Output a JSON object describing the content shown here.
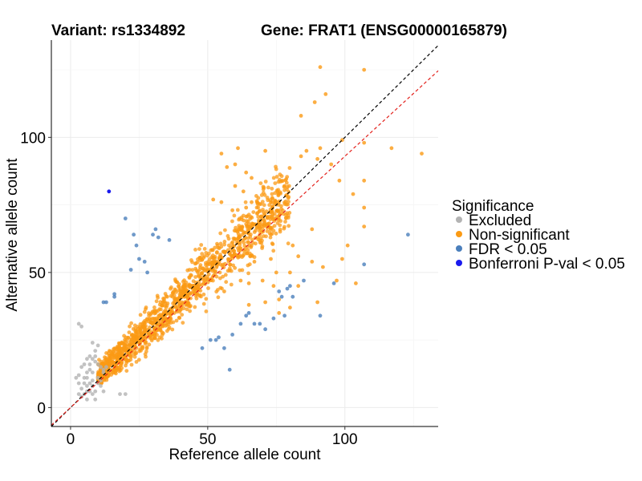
{
  "chart_data": {
    "type": "scatter",
    "title_left": "Variant: rs1334892",
    "title_right": "Gene: FRAT1 (ENSG00000165879)",
    "xlabel": "Reference allele count",
    "ylabel": "Alternative allele count",
    "xlim": [
      -7,
      134
    ],
    "ylim": [
      -7,
      136
    ],
    "xticks": [
      0,
      50,
      100
    ],
    "yticks": [
      0,
      50,
      100
    ],
    "grid": true,
    "reference_lines": [
      {
        "name": "identity",
        "slope": 1.0,
        "intercept": 0,
        "color": "#000000",
        "dash": true
      },
      {
        "name": "fit",
        "slope": 0.93,
        "intercept": 0,
        "color": "#e3201b",
        "dash": true
      }
    ],
    "legend": {
      "title": "Significance",
      "position": "right",
      "entries": [
        {
          "label": "Excluded",
          "color": "#b3b3b3"
        },
        {
          "label": "Non-significant",
          "color": "#fb9a14"
        },
        {
          "label": "FDR < 0.05",
          "color": "#4b7fbc"
        },
        {
          "label": "Bonferroni P-val < 0.05",
          "color": "#1a1aee"
        }
      ]
    },
    "series": [
      {
        "name": "Excluded",
        "color": "#b3b3b3",
        "points": [
          [
            3,
            31
          ],
          [
            4,
            30
          ],
          [
            3,
            12
          ],
          [
            2,
            11
          ],
          [
            3,
            9
          ],
          [
            4,
            7
          ],
          [
            5,
            5
          ],
          [
            6,
            3
          ],
          [
            3,
            5
          ],
          [
            4,
            4
          ],
          [
            5,
            11
          ],
          [
            6,
            13
          ],
          [
            5,
            16
          ],
          [
            6,
            18
          ],
          [
            7,
            14
          ],
          [
            7,
            16
          ],
          [
            8,
            13
          ],
          [
            8,
            18
          ],
          [
            9,
            17
          ],
          [
            9,
            19
          ],
          [
            10,
            11
          ],
          [
            10,
            9
          ],
          [
            11,
            8
          ],
          [
            9,
            6
          ],
          [
            7,
            6
          ],
          [
            6,
            8
          ],
          [
            5,
            9
          ],
          [
            8,
            5
          ],
          [
            9,
            3
          ],
          [
            8,
            10
          ],
          [
            11,
            15
          ],
          [
            12,
            14
          ],
          [
            10,
            16
          ],
          [
            6,
            11
          ],
          [
            7,
            19
          ],
          [
            9,
            21
          ],
          [
            8,
            24
          ],
          [
            10,
            23
          ],
          [
            4,
            15
          ],
          [
            12,
            6
          ],
          [
            18,
            5
          ],
          [
            20,
            5
          ],
          [
            11,
            10
          ],
          [
            12,
            13
          ],
          [
            13,
            15
          ],
          [
            7,
            9
          ],
          [
            6,
            6
          ],
          [
            8,
            8
          ]
        ]
      },
      {
        "name": "Non-significant",
        "color": "#fb9a14",
        "points": [
          [
            91,
            126
          ],
          [
            107,
            125
          ],
          [
            93,
            116
          ],
          [
            89,
            113
          ],
          [
            84,
            108
          ],
          [
            99,
            99
          ],
          [
            107,
            98
          ],
          [
            117,
            96
          ],
          [
            128,
            94
          ],
          [
            86,
            95
          ],
          [
            91,
            96
          ],
          [
            84,
            93
          ],
          [
            95,
            90
          ],
          [
            90,
            92
          ],
          [
            98,
            84
          ],
          [
            107,
            84
          ],
          [
            103,
            79
          ],
          [
            57,
            89
          ],
          [
            66,
            85
          ],
          [
            71,
            95
          ],
          [
            61,
            96
          ],
          [
            52,
            77
          ],
          [
            60,
            82
          ],
          [
            63,
            80
          ],
          [
            55,
            76
          ],
          [
            66,
            76
          ],
          [
            73,
            76
          ],
          [
            78,
            82
          ],
          [
            64,
            74
          ],
          [
            59,
            73
          ],
          [
            69,
            64
          ],
          [
            72,
            68
          ],
          [
            81,
            60
          ],
          [
            75,
            50
          ],
          [
            83,
            56
          ],
          [
            88,
            66
          ],
          [
            92,
            52
          ],
          [
            99,
            55
          ],
          [
            97,
            47
          ],
          [
            104,
            46
          ],
          [
            107,
            67
          ],
          [
            101,
            60
          ],
          [
            107,
            74
          ],
          [
            67,
            54
          ],
          [
            76,
            40
          ],
          [
            71,
            39
          ],
          [
            76,
            35
          ],
          [
            80,
            37
          ],
          [
            74,
            45
          ],
          [
            70,
            47
          ],
          [
            61,
            59
          ],
          [
            62,
            47
          ],
          [
            56,
            43
          ],
          [
            65,
            38
          ],
          [
            65,
            46
          ],
          [
            80,
            50
          ],
          [
            73,
            55
          ],
          [
            88,
            54
          ],
          [
            90,
            39
          ],
          [
            83,
            45
          ],
          [
            60,
            90
          ],
          [
            64,
            87
          ],
          [
            55,
            94
          ]
        ]
      },
      {
        "name": "FDR < 0.05",
        "color": "#4b7fbc",
        "points": [
          [
            20,
            70
          ],
          [
            23,
            64
          ],
          [
            24,
            60
          ],
          [
            31,
            66
          ],
          [
            32,
            63
          ],
          [
            30,
            64
          ],
          [
            25,
            55
          ],
          [
            27,
            54
          ],
          [
            28,
            50
          ],
          [
            22,
            51
          ],
          [
            16,
            41
          ],
          [
            16,
            42
          ],
          [
            12,
            39
          ],
          [
            13,
            39
          ],
          [
            36,
            62
          ],
          [
            123,
            64
          ],
          [
            107,
            53
          ],
          [
            96,
            46
          ],
          [
            85,
            47
          ],
          [
            81,
            41
          ],
          [
            80,
            45
          ],
          [
            79,
            44
          ],
          [
            77,
            41
          ],
          [
            78,
            34
          ],
          [
            74,
            33
          ],
          [
            71,
            29
          ],
          [
            69,
            31
          ],
          [
            67,
            31
          ],
          [
            64,
            34
          ],
          [
            65,
            35
          ],
          [
            54,
            26
          ],
          [
            51,
            25
          ],
          [
            53,
            25
          ],
          [
            59,
            27
          ],
          [
            58,
            14
          ],
          [
            91,
            34
          ],
          [
            76,
            43
          ],
          [
            56,
            22
          ],
          [
            48,
            22
          ],
          [
            62,
            31
          ]
        ]
      },
      {
        "name": "Bonferroni P-val < 0.05",
        "color": "#1a1aee",
        "points": [
          [
            14,
            80
          ]
        ]
      }
    ],
    "dense_cloud": {
      "series": "Non-significant",
      "description": "dense orange cloud along the diagonal",
      "x_range": [
        10,
        80
      ],
      "center_slope": 0.97,
      "spread": 9,
      "count": 1300
    }
  }
}
